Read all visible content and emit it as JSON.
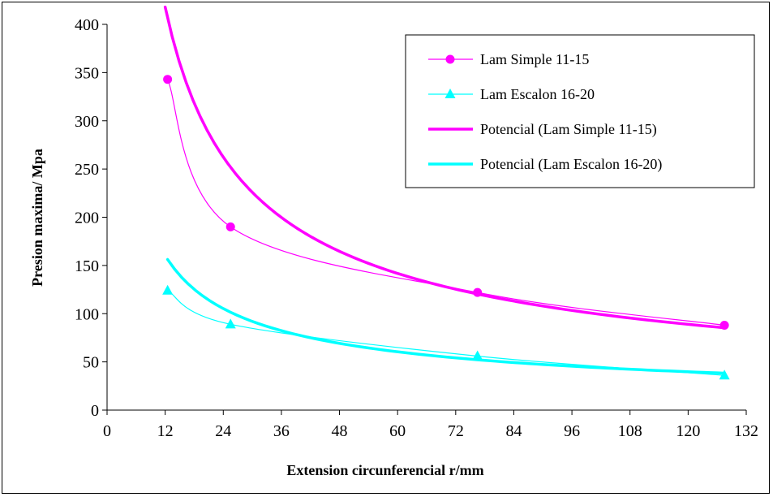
{
  "chart_data": {
    "type": "line",
    "xlabel": "Extension circunferencial r/mm",
    "ylabel": "Presion maxima/ Mpa",
    "xlim": [
      0,
      132
    ],
    "ylim": [
      0,
      400
    ],
    "xticks": [
      0,
      12,
      24,
      36,
      48,
      60,
      72,
      84,
      96,
      108,
      120,
      132
    ],
    "yticks": [
      0,
      50,
      100,
      150,
      200,
      250,
      300,
      350,
      400
    ],
    "grid": false,
    "legend_position": "top-right",
    "series": [
      {
        "name": "Lam Simple 11-15",
        "color": "#ff00ff",
        "marker": "circle",
        "style": "thin-smooth",
        "x": [
          12.5,
          25.5,
          76.5,
          127.5
        ],
        "y": [
          343,
          190,
          122,
          88
        ]
      },
      {
        "name": "Lam Escalon 16-20",
        "color": "#00ffff",
        "marker": "triangle",
        "style": "thin-smooth",
        "x": [
          12.5,
          25.5,
          76.5,
          127.5
        ],
        "y": [
          124,
          89,
          56,
          36
        ]
      },
      {
        "name": "Potencial (Lam Simple 11-15)",
        "color": "#ff00ff",
        "marker": "none",
        "style": "thick-trend",
        "fit": {
          "a": 2220,
          "b": -0.672,
          "x_from": 12,
          "x_to": 127.5
        }
      },
      {
        "name": "Potencial (Lam Escalon 16-20)",
        "color": "#00ffff",
        "marker": "none",
        "style": "thick-trend",
        "fit": {
          "a": 720,
          "b": -0.605,
          "x_from": 12.5,
          "x_to": 127.5
        }
      }
    ]
  }
}
